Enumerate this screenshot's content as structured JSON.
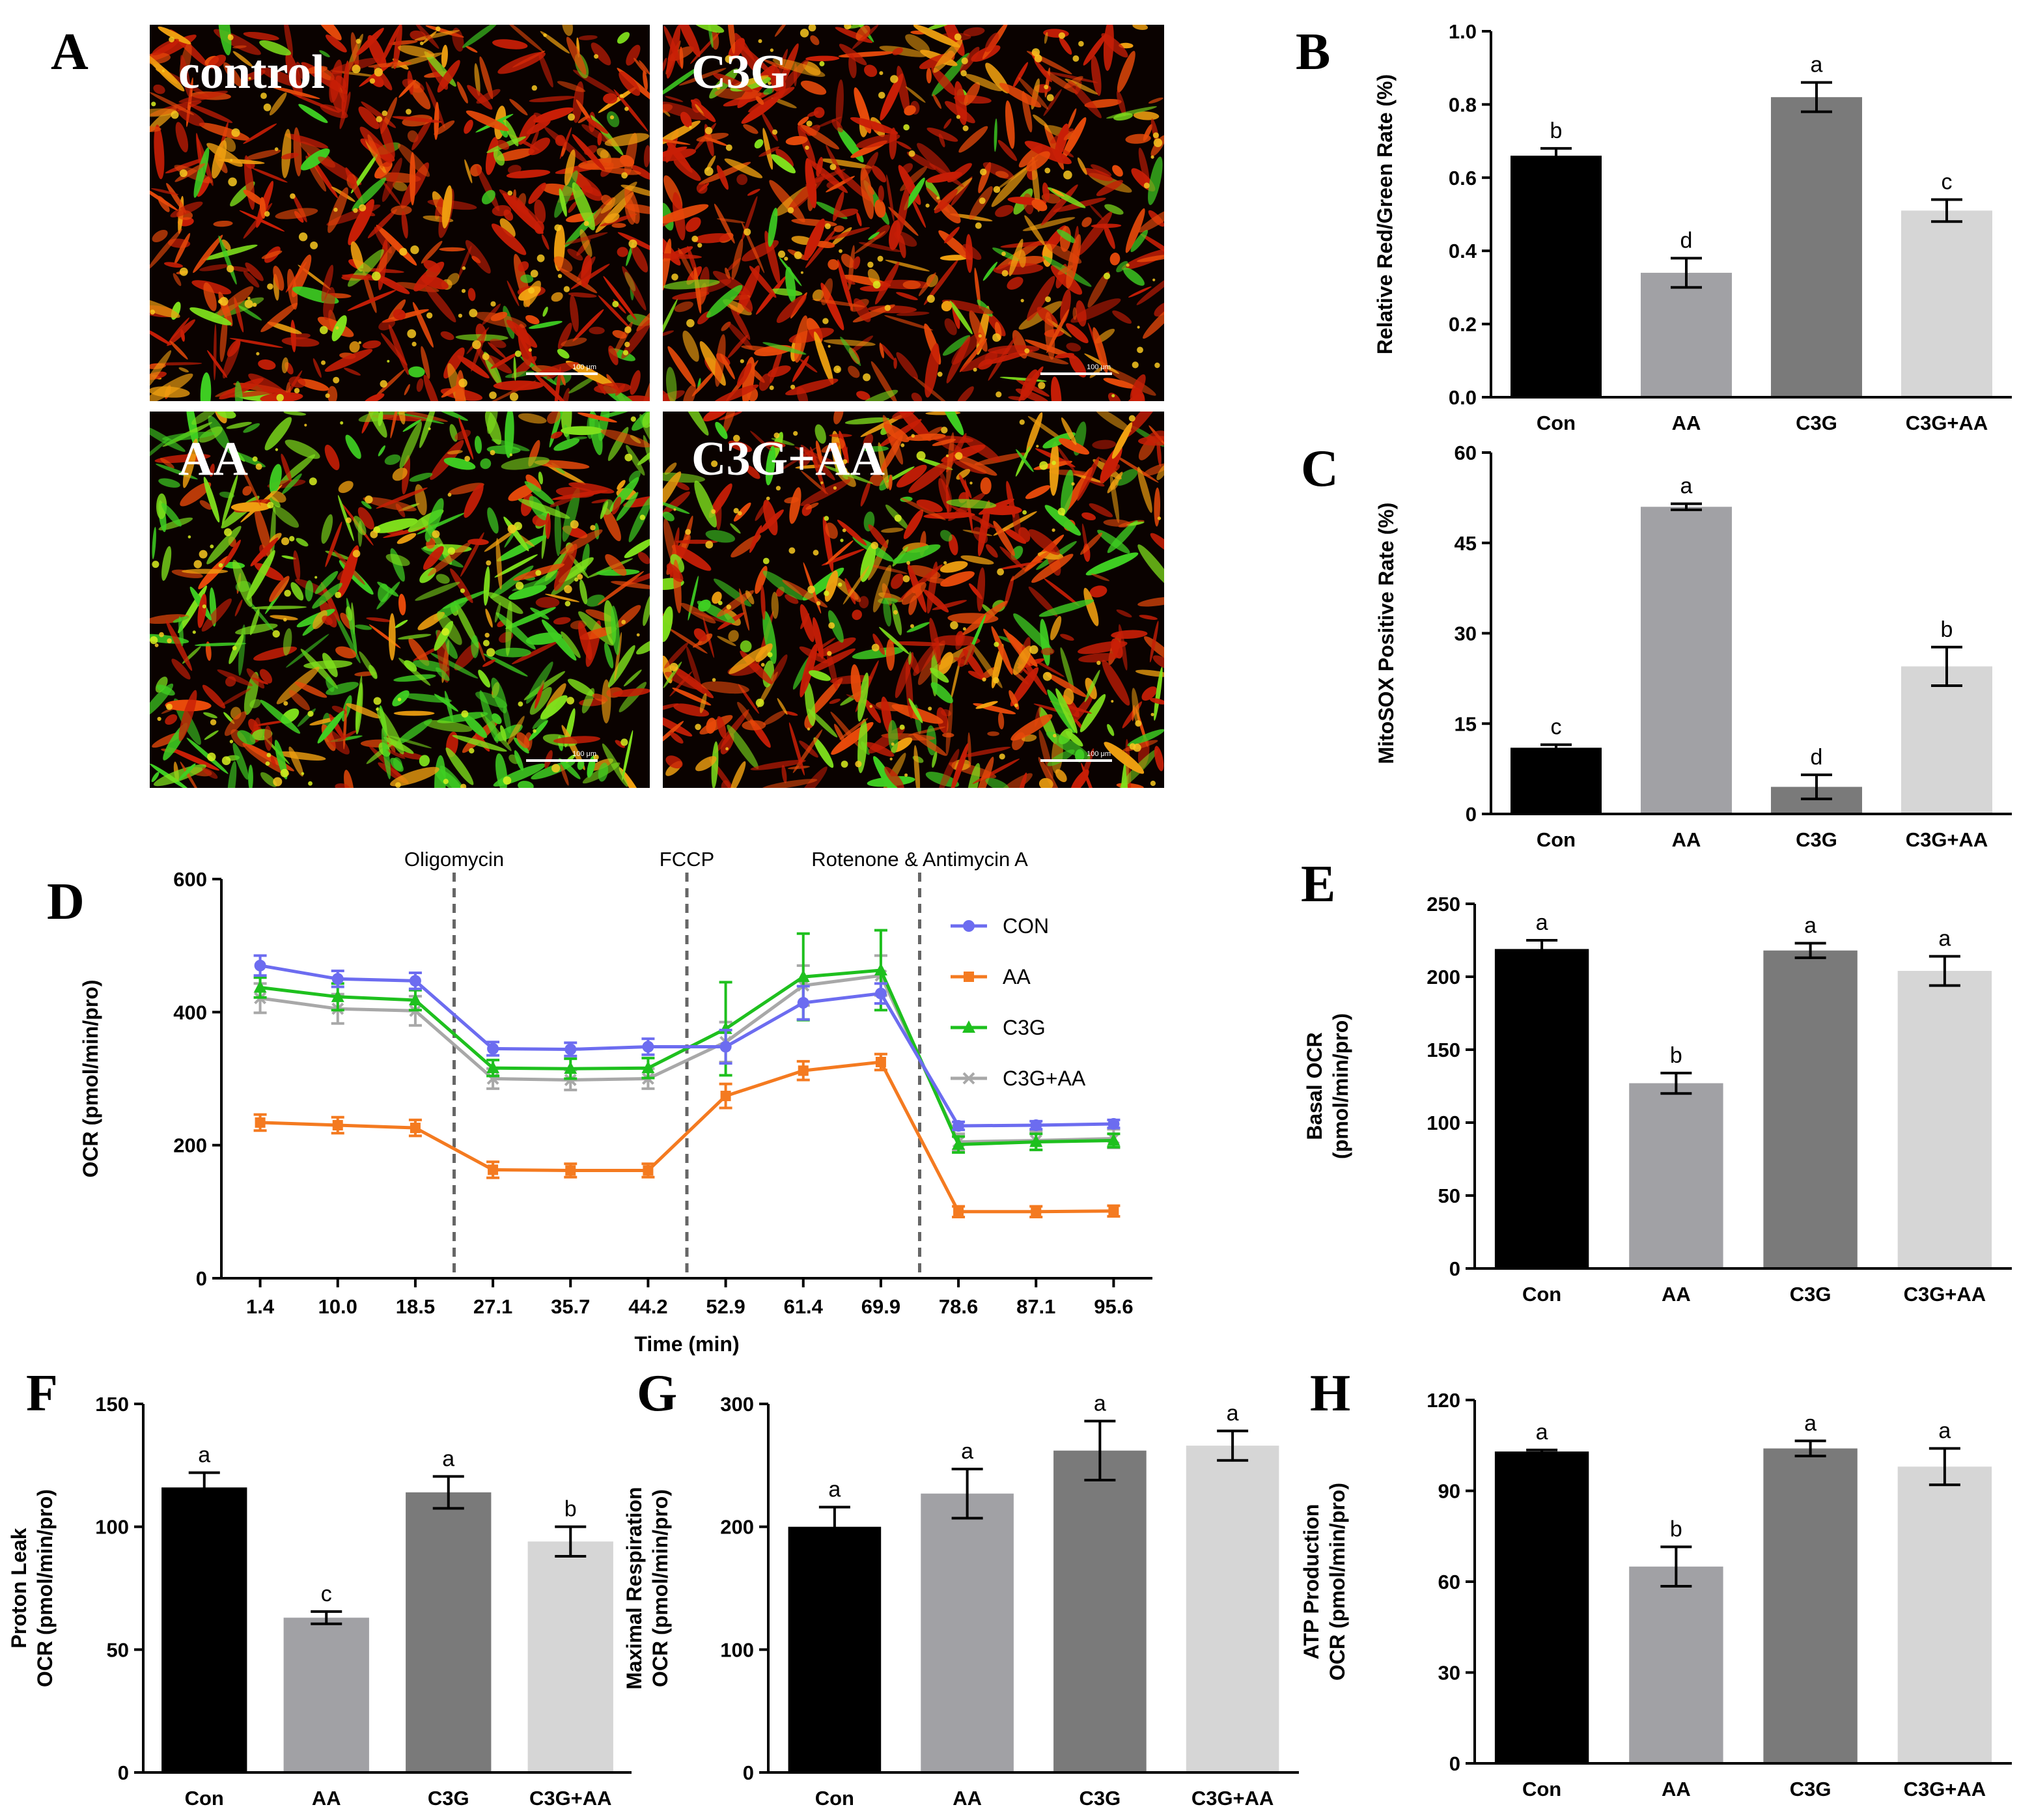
{
  "panels": {
    "A": "A",
    "B": "B",
    "C": "C",
    "D": "D",
    "E": "E",
    "F": "F",
    "G": "G",
    "H": "H"
  },
  "micrographs": [
    {
      "label": "control",
      "scale": "100 μm",
      "mix": 0.12
    },
    {
      "label": "C3G",
      "scale": "100 μm",
      "mix": 0.08
    },
    {
      "label": "AA",
      "scale": "100 μm",
      "mix": 0.62
    },
    {
      "label": "C3G+AA",
      "scale": "100 μm",
      "mix": 0.22
    }
  ],
  "colors": {
    "con_bar": "#000000",
    "aa_bar": "#a1a1a5",
    "c3g_bar": "#7a7a7a",
    "c3gaa_bar": "#d6d6d6",
    "line_con": "#6c6cf0",
    "line_aa": "#f47a20",
    "line_c3g": "#1ec01e",
    "line_c3gaa": "#a8a8a8"
  },
  "chart_data": [
    {
      "id": "B",
      "type": "bar",
      "categories": [
        "Con",
        "AA",
        "C3G",
        "C3G+AA"
      ],
      "values": [
        0.66,
        0.34,
        0.82,
        0.51
      ],
      "errors": [
        0.02,
        0.04,
        0.04,
        0.03
      ],
      "labels": [
        "b",
        "d",
        "a",
        "c"
      ],
      "ylabel": "Relative Red/Green Rate (%)",
      "ylim": [
        0,
        1.0
      ],
      "yticks": [
        "0.0",
        "0.2",
        "0.4",
        "0.6",
        "0.8",
        "1.0"
      ]
    },
    {
      "id": "C",
      "type": "bar",
      "categories": [
        "Con",
        "AA",
        "C3G",
        "C3G+AA"
      ],
      "values": [
        11,
        51,
        4.5,
        24.5
      ],
      "errors": [
        0.5,
        0.5,
        2.0,
        3.2
      ],
      "labels": [
        "c",
        "a",
        "d",
        "b"
      ],
      "ylabel": "MitoSOX Positive Rate (%)",
      "ylim": [
        0,
        60
      ],
      "yticks": [
        "0",
        "15",
        "30",
        "45",
        "60"
      ]
    },
    {
      "id": "D",
      "type": "line",
      "x": [
        "1.4",
        "10.0",
        "18.5",
        "27.1",
        "35.7",
        "44.2",
        "52.9",
        "61.4",
        "69.9",
        "78.6",
        "87.1",
        "95.6"
      ],
      "xlabel": "Time (min)",
      "ylabel": "OCR (pmol/min/pro)",
      "ylim": [
        0,
        600
      ],
      "yticks": [
        "0",
        "200",
        "400",
        "600"
      ],
      "injections": [
        {
          "label": "Oligomycin",
          "after_index": 2
        },
        {
          "label": "FCCP",
          "after_index": 5
        },
        {
          "label": "Rotenone & Antimycin A",
          "after_index": 8
        }
      ],
      "series": [
        {
          "name": "CON",
          "marker": "circle",
          "values": [
            470,
            450,
            447,
            345,
            344,
            348,
            348,
            414,
            428,
            229,
            230,
            232
          ],
          "errors": [
            15,
            12,
            12,
            10,
            10,
            12,
            25,
            25,
            15,
            6,
            6,
            6
          ]
        },
        {
          "name": "AA",
          "marker": "square",
          "values": [
            234,
            230,
            226,
            163,
            162,
            162,
            274,
            312,
            325,
            100,
            100,
            101
          ],
          "errors": [
            12,
            12,
            12,
            12,
            10,
            10,
            18,
            14,
            12,
            8,
            8,
            8
          ]
        },
        {
          "name": "C3G",
          "marker": "triangle",
          "values": [
            437,
            423,
            418,
            316,
            315,
            316,
            375,
            453,
            463,
            201,
            205,
            207
          ],
          "errors": [
            15,
            20,
            15,
            12,
            15,
            15,
            70,
            65,
            60,
            12,
            12,
            10
          ]
        },
        {
          "name": "C3G+AA",
          "marker": "x",
          "values": [
            421,
            405,
            402,
            300,
            298,
            300,
            355,
            440,
            455,
            205,
            207,
            210
          ],
          "errors": [
            22,
            22,
            22,
            15,
            15,
            15,
            30,
            30,
            30,
            12,
            14,
            14
          ]
        }
      ]
    },
    {
      "id": "E",
      "type": "bar",
      "categories": [
        "Con",
        "AA",
        "C3G",
        "C3G+AA"
      ],
      "values": [
        219,
        127,
        218,
        204
      ],
      "errors": [
        6,
        7,
        5,
        10
      ],
      "labels": [
        "a",
        "b",
        "a",
        "a"
      ],
      "ylabel": [
        "Basal OCR",
        "(pmol/min/pro)"
      ],
      "ylim": [
        0,
        250
      ],
      "yticks": [
        "0",
        "50",
        "100",
        "150",
        "200",
        "250"
      ]
    },
    {
      "id": "F",
      "type": "bar",
      "categories": [
        "Con",
        "AA",
        "C3G",
        "C3G+AA"
      ],
      "values": [
        116,
        63,
        114,
        94
      ],
      "errors": [
        6,
        2.5,
        6.5,
        6
      ],
      "labels": [
        "a",
        "c",
        "a",
        "b"
      ],
      "ylabel": [
        "Proton Leak",
        "OCR (pmol/min/pro)"
      ],
      "ylim": [
        0,
        150
      ],
      "yticks": [
        "0",
        "50",
        "100",
        "150"
      ]
    },
    {
      "id": "G",
      "type": "bar",
      "categories": [
        "Con",
        "AA",
        "C3G",
        "C3G+AA"
      ],
      "values": [
        200,
        227,
        262,
        266
      ],
      "errors": [
        16,
        20,
        24,
        12
      ],
      "labels": [
        "a",
        "a",
        "a",
        "a"
      ],
      "ylabel": [
        "Maximal Respiration",
        "OCR (pmol/min/pro)"
      ],
      "ylim": [
        0,
        300
      ],
      "yticks": [
        "0",
        "100",
        "200",
        "300"
      ]
    },
    {
      "id": "H",
      "type": "bar",
      "categories": [
        "Con",
        "AA",
        "C3G",
        "C3G+AA"
      ],
      "values": [
        103,
        65,
        104,
        98
      ],
      "errors": [
        0.5,
        6.5,
        2.5,
        6
      ],
      "labels": [
        "a",
        "b",
        "a",
        "a"
      ],
      "ylabel": [
        "ATP Production",
        "OCR (pmol/min/pro)"
      ],
      "ylim": [
        0,
        120
      ],
      "yticks": [
        "0",
        "30",
        "60",
        "90",
        "120"
      ]
    }
  ]
}
